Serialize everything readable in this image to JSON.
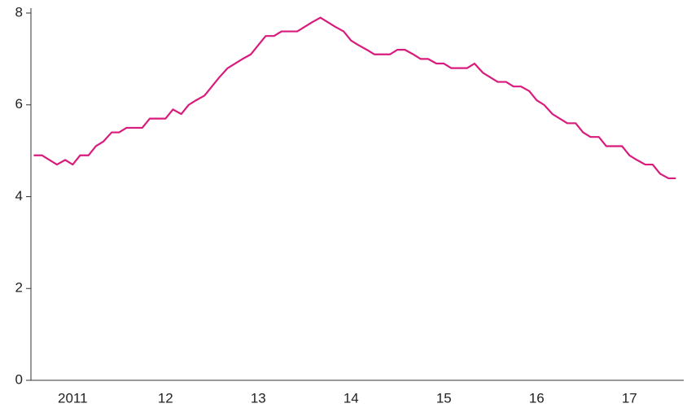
{
  "chart_data": {
    "type": "line",
    "x": [
      2011.08,
      2011.17,
      2011.25,
      2011.33,
      2011.42,
      2011.5,
      2011.58,
      2011.67,
      2011.75,
      2011.83,
      2011.92,
      2012.0,
      2012.08,
      2012.17,
      2012.25,
      2012.33,
      2012.42,
      2012.5,
      2012.58,
      2012.67,
      2012.75,
      2012.83,
      2012.92,
      2013.0,
      2013.08,
      2013.17,
      2013.25,
      2013.33,
      2013.42,
      2013.5,
      2013.58,
      2013.67,
      2013.75,
      2013.83,
      2013.92,
      2014.0,
      2014.08,
      2014.17,
      2014.25,
      2014.33,
      2014.42,
      2014.5,
      2014.58,
      2014.67,
      2014.75,
      2014.83,
      2014.92,
      2015.0,
      2015.08,
      2015.17,
      2015.25,
      2015.33,
      2015.42,
      2015.5,
      2015.58,
      2015.67,
      2015.75,
      2015.83,
      2015.92,
      2016.0,
      2016.08,
      2016.17,
      2016.25,
      2016.33,
      2016.42,
      2016.5,
      2016.58,
      2016.67,
      2016.75,
      2016.83,
      2016.92,
      2017.0,
      2017.08,
      2017.17,
      2017.25,
      2017.33,
      2017.42,
      2017.5,
      2017.58,
      2017.67,
      2017.75,
      2017.83,
      2017.92,
      2018.0
    ],
    "series": [
      {
        "color": "#d81b7c",
        "values": [
          4.9,
          4.9,
          4.8,
          4.7,
          4.8,
          4.7,
          4.9,
          4.9,
          5.1,
          5.2,
          5.4,
          5.4,
          5.5,
          5.5,
          5.5,
          5.7,
          5.7,
          5.7,
          5.9,
          5.8,
          6.0,
          6.1,
          6.2,
          6.4,
          6.6,
          6.8,
          6.9,
          7.0,
          7.1,
          7.3,
          7.5,
          7.5,
          7.6,
          7.6,
          7.6,
          7.7,
          7.8,
          7.9,
          7.8,
          7.7,
          7.6,
          7.4,
          7.3,
          7.2,
          7.1,
          7.1,
          7.1,
          7.2,
          7.2,
          7.1,
          7.0,
          7.0,
          6.9,
          6.9,
          6.8,
          6.8,
          6.8,
          6.9,
          6.7,
          6.6,
          6.5,
          6.5,
          6.4,
          6.4,
          6.3,
          6.1,
          6.0,
          5.8,
          5.7,
          5.6,
          5.6,
          5.4,
          5.3,
          5.3,
          5.1,
          5.1,
          5.1,
          4.9,
          4.8,
          4.7,
          4.7,
          4.5,
          4.4,
          4.4
        ]
      }
    ],
    "xlim": [
      2011.05,
      2018.1
    ],
    "xticks": [
      {
        "value": 2011.5,
        "label": "2011"
      },
      {
        "value": 2012.5,
        "label": "12"
      },
      {
        "value": 2013.5,
        "label": "13"
      },
      {
        "value": 2014.5,
        "label": "14"
      },
      {
        "value": 2015.5,
        "label": "15"
      },
      {
        "value": 2016.5,
        "label": "16"
      },
      {
        "value": 2017.5,
        "label": "17"
      }
    ],
    "ylim": [
      0,
      8
    ],
    "yticks": [
      0,
      2,
      4,
      6,
      8
    ],
    "grid": false
  }
}
